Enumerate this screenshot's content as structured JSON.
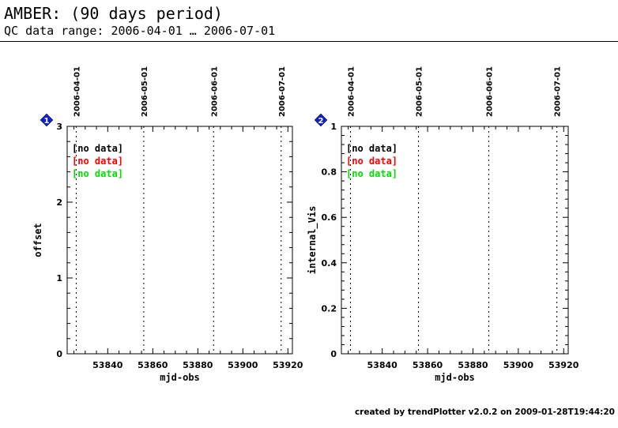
{
  "header": {
    "title": "AMBER: (90 days period)",
    "subtitle": "QC data range: 2006-04-01 … 2006-07-01"
  },
  "footer": "created by trendPlotter v2.0.2 on 2009-01-28T19:44:20",
  "chart_data": [
    {
      "type": "scatter",
      "badge": "1",
      "xlabel": "mjd-obs",
      "ylabel": "offset",
      "xlim": [
        53822,
        53922
      ],
      "ylim": [
        0,
        3
      ],
      "xticks": [
        53840,
        53860,
        53880,
        53900,
        53920
      ],
      "yticks": [
        0,
        1,
        2,
        3
      ],
      "ytick_labels": [
        "0",
        "1",
        "2",
        "3"
      ],
      "date_markers": [
        {
          "label": "2006-04-01",
          "mjd": 53826
        },
        {
          "label": "2006-05-01",
          "mjd": 53856
        },
        {
          "label": "2006-06-01",
          "mjd": 53887
        },
        {
          "label": "2006-07-01",
          "mjd": 53917
        }
      ],
      "legend": [
        {
          "text": "[no data]",
          "color": "#000000"
        },
        {
          "text": "[no data]",
          "color": "#ff0000"
        },
        {
          "text": "[no data]",
          "color": "#00dd00"
        }
      ],
      "series": []
    },
    {
      "type": "scatter",
      "badge": "2",
      "xlabel": "mjd-obs",
      "ylabel": "internal_Vis",
      "xlim": [
        53822,
        53922
      ],
      "ylim": [
        0,
        1
      ],
      "xticks": [
        53840,
        53860,
        53880,
        53900,
        53920
      ],
      "yticks": [
        0,
        0.2,
        0.4,
        0.6,
        0.8,
        1
      ],
      "ytick_labels": [
        "0",
        "0.2",
        "0.4",
        "0.6",
        "0.8",
        "1"
      ],
      "date_markers": [
        {
          "label": "2006-04-01",
          "mjd": 53826
        },
        {
          "label": "2006-05-01",
          "mjd": 53856
        },
        {
          "label": "2006-06-01",
          "mjd": 53887
        },
        {
          "label": "2006-07-01",
          "mjd": 53917
        }
      ],
      "legend": [
        {
          "text": "[no data]",
          "color": "#000000"
        },
        {
          "text": "[no data]",
          "color": "#ff0000"
        },
        {
          "text": "[no data]",
          "color": "#00dd00"
        }
      ],
      "series": []
    }
  ],
  "colors": {
    "badge_fill": "#1020c8",
    "badge_text": "#ffffff"
  }
}
